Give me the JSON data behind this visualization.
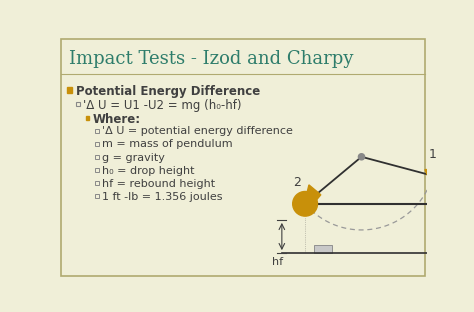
{
  "title": "Impact Tests - Izod and Charpy",
  "title_color": "#2E7D6B",
  "title_fontsize": 13,
  "bg_color": "#F0EFD8",
  "bullet_color": "#C8900A",
  "text_color": "#404040",
  "line1": "Potential Energy Difference",
  "line2": "'Δ U = U1 -U2 = mg (h₀-hf)",
  "line3": "Where:",
  "line4": "'Δ U = potential energy difference",
  "line5": "m = mass of pendulum",
  "line6": "g = gravity",
  "line7": "h₀ = drop height",
  "line8": "hf = rebound height",
  "line9": "1 ft -lb = 1.356 joules",
  "pendulum_color": "#C8900A",
  "diagram_line_color": "#303030",
  "border_color": "#B0AA70"
}
